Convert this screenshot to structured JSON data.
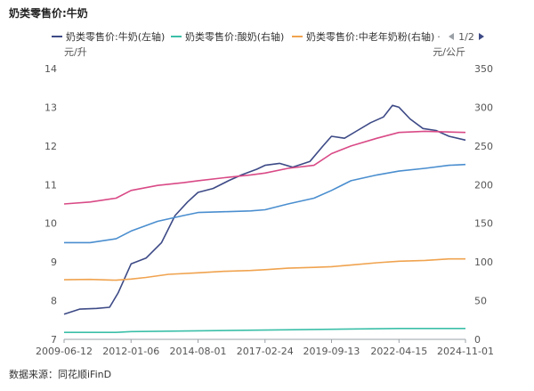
{
  "title": "奶类零售价:牛奶",
  "source": "数据来源：同花顺iFinD",
  "legend": {
    "pager": "1/2",
    "prev_icon": "triangle-left-icon",
    "next_icon": "triangle-right-icon"
  },
  "chart_data": {
    "type": "line",
    "x_ticks": [
      "2009-06-12",
      "2012-01-06",
      "2014-08-01",
      "2017-02-24",
      "2019-09-13",
      "2022-04-15",
      "2024-11-01"
    ],
    "x_range": [
      "2009-06-12",
      "2024-11-01"
    ],
    "y_left": {
      "label": "元/升",
      "range": [
        7,
        14
      ],
      "ticks": [
        7,
        8,
        9,
        10,
        11,
        12,
        13,
        14
      ]
    },
    "y_right": {
      "label": "元/公斤",
      "range": [
        0,
        350
      ],
      "ticks": [
        0,
        50,
        100,
        150,
        200,
        250,
        300,
        350
      ]
    },
    "grid": false,
    "legend_position": "top",
    "series": [
      {
        "name": "奶类零售价:牛奶(左轴)",
        "axis": "left",
        "color": "#3d4a86",
        "points": [
          [
            "2009-06-12",
            7.65
          ],
          [
            "2010-01-15",
            7.78
          ],
          [
            "2010-09-10",
            7.8
          ],
          [
            "2011-03-11",
            7.83
          ],
          [
            "2011-07-08",
            8.2
          ],
          [
            "2012-01-06",
            8.95
          ],
          [
            "2012-08-03",
            9.1
          ],
          [
            "2013-03-08",
            9.5
          ],
          [
            "2013-09-13",
            10.2
          ],
          [
            "2014-03-07",
            10.55
          ],
          [
            "2014-08-01",
            10.8
          ],
          [
            "2015-02-27",
            10.9
          ],
          [
            "2015-10-02",
            11.1
          ],
          [
            "2016-04-01",
            11.25
          ],
          [
            "2016-11-04",
            11.4
          ],
          [
            "2017-02-24",
            11.5
          ],
          [
            "2017-09-15",
            11.55
          ],
          [
            "2018-03-16",
            11.45
          ],
          [
            "2018-11-16",
            11.6
          ],
          [
            "2019-05-17",
            12.0
          ],
          [
            "2019-09-13",
            12.25
          ],
          [
            "2020-03-13",
            12.2
          ],
          [
            "2020-09-11",
            12.4
          ],
          [
            "2021-03-12",
            12.6
          ],
          [
            "2021-09-10",
            12.75
          ],
          [
            "2022-01-14",
            13.05
          ],
          [
            "2022-04-15",
            13.0
          ],
          [
            "2022-09-16",
            12.7
          ],
          [
            "2023-03-17",
            12.45
          ],
          [
            "2023-09-15",
            12.4
          ],
          [
            "2024-03-15",
            12.25
          ],
          [
            "2024-11-01",
            12.15
          ]
        ]
      },
      {
        "name": "",
        "axis": "left",
        "color": "#d94a86",
        "points": [
          [
            "2009-06-12",
            10.5
          ],
          [
            "2010-06-11",
            10.55
          ],
          [
            "2011-06-10",
            10.65
          ],
          [
            "2012-01-06",
            10.85
          ],
          [
            "2013-01-11",
            10.98
          ],
          [
            "2014-01-10",
            11.05
          ],
          [
            "2014-08-01",
            11.1
          ],
          [
            "2015-08-07",
            11.18
          ],
          [
            "2016-08-05",
            11.25
          ],
          [
            "2017-02-24",
            11.3
          ],
          [
            "2018-01-12",
            11.42
          ],
          [
            "2019-01-11",
            11.5
          ],
          [
            "2019-09-13",
            11.8
          ],
          [
            "2020-06-12",
            12.0
          ],
          [
            "2021-06-11",
            12.2
          ],
          [
            "2022-04-15",
            12.35
          ],
          [
            "2023-04-14",
            12.38
          ],
          [
            "2024-11-01",
            12.35
          ]
        ]
      },
      {
        "name": "",
        "axis": "left",
        "color": "#4a8ecf",
        "points": [
          [
            "2009-06-12",
            9.5
          ],
          [
            "2010-06-11",
            9.5
          ],
          [
            "2011-06-10",
            9.6
          ],
          [
            "2012-01-06",
            9.8
          ],
          [
            "2013-01-11",
            10.05
          ],
          [
            "2014-01-10",
            10.2
          ],
          [
            "2014-08-01",
            10.28
          ],
          [
            "2015-08-07",
            10.3
          ],
          [
            "2016-08-05",
            10.32
          ],
          [
            "2017-02-24",
            10.35
          ],
          [
            "2018-01-12",
            10.5
          ],
          [
            "2019-01-11",
            10.65
          ],
          [
            "2019-09-13",
            10.85
          ],
          [
            "2020-06-12",
            11.1
          ],
          [
            "2021-06-11",
            11.25
          ],
          [
            "2022-04-15",
            11.35
          ],
          [
            "2023-04-14",
            11.42
          ],
          [
            "2024-03-15",
            11.5
          ],
          [
            "2024-11-01",
            11.52
          ]
        ]
      },
      {
        "name": "奶类零售价:酸奶(右轴)",
        "axis": "right",
        "color": "#3bbfa8",
        "points": [
          [
            "2009-06-12",
            9
          ],
          [
            "2011-06-10",
            9
          ],
          [
            "2012-01-06",
            10
          ],
          [
            "2014-08-01",
            11
          ],
          [
            "2017-02-24",
            12
          ],
          [
            "2019-09-13",
            13
          ],
          [
            "2022-04-15",
            14
          ],
          [
            "2024-11-01",
            14
          ]
        ]
      },
      {
        "name": "奶类零售价:中老年奶粉(右轴)",
        "axis": "right",
        "color": "#f0a34f",
        "points": [
          [
            "2009-06-12",
            77
          ],
          [
            "2010-06-11",
            77.5
          ],
          [
            "2011-06-10",
            76.5
          ],
          [
            "2012-01-06",
            78
          ],
          [
            "2012-08-03",
            80
          ],
          [
            "2013-06-14",
            84
          ],
          [
            "2014-08-01",
            86
          ],
          [
            "2015-08-07",
            88
          ],
          [
            "2016-08-05",
            89
          ],
          [
            "2017-02-24",
            90
          ],
          [
            "2018-01-12",
            92
          ],
          [
            "2019-01-11",
            93
          ],
          [
            "2019-09-13",
            94
          ],
          [
            "2020-06-12",
            96
          ],
          [
            "2021-06-11",
            99
          ],
          [
            "2022-04-15",
            101
          ],
          [
            "2023-04-14",
            102
          ],
          [
            "2024-03-15",
            104
          ],
          [
            "2024-11-01",
            104
          ]
        ]
      }
    ]
  }
}
